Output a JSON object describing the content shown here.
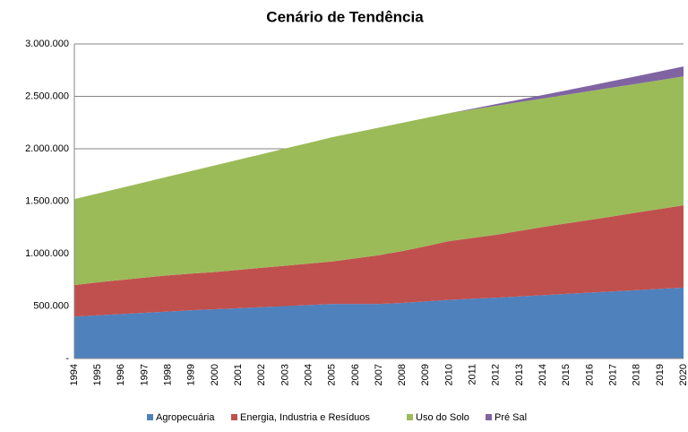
{
  "chart_data": {
    "type": "stacked_area",
    "title": "Cenário de Tendência",
    "categories": [
      "1994",
      "1995",
      "1996",
      "1997",
      "1998",
      "1999",
      "2000",
      "2001",
      "2002",
      "2003",
      "2004",
      "2005",
      "2006",
      "2007",
      "2008",
      "2009",
      "2010",
      "2011",
      "2012",
      "2013",
      "2014",
      "2015",
      "2016",
      "2017",
      "2018",
      "2019",
      "2020"
    ],
    "series": [
      {
        "name": "Agropecuária",
        "color": "#4f81bd",
        "values": [
          400000,
          412000,
          424000,
          436000,
          448000,
          460000,
          470000,
          480000,
          490000,
          500000,
          510000,
          520000,
          520000,
          520000,
          530000,
          545000,
          560000,
          570000,
          580000,
          592000,
          604000,
          616000,
          628000,
          640000,
          652000,
          664000,
          676000
        ]
      },
      {
        "name": "Energia, Industria e Resíduos",
        "color": "#c0504d",
        "values": [
          300000,
          315000,
          325000,
          335000,
          345000,
          350000,
          355000,
          365000,
          375000,
          385000,
          395000,
          405000,
          435000,
          465000,
          495000,
          525000,
          560000,
          580000,
          600000,
          625000,
          650000,
          672000,
          694000,
          716000,
          740000,
          762000,
          784000
        ]
      },
      {
        "name": "Uso do Solo",
        "color": "#9bbb59",
        "values": [
          820000,
          847000,
          878000,
          910000,
          942000,
          978000,
          1017000,
          1050000,
          1084000,
          1118000,
          1151000,
          1185000,
          1201000,
          1217000,
          1223000,
          1224000,
          1220000,
          1225000,
          1230000,
          1228000,
          1226000,
          1227000,
          1228000,
          1229000,
          1228000,
          1229000,
          1230000
        ]
      },
      {
        "name": "Pré Sal",
        "color": "#8064a2",
        "values": [
          0,
          0,
          0,
          0,
          0,
          0,
          0,
          0,
          0,
          0,
          0,
          0,
          0,
          0,
          0,
          0,
          0,
          8000,
          16000,
          24000,
          33000,
          42000,
          52000,
          62000,
          72000,
          83000,
          95000
        ]
      }
    ],
    "ylim": [
      0,
      3000000
    ],
    "yticks": [
      {
        "value": 0,
        "label": "-"
      },
      {
        "value": 500000,
        "label": "500.000"
      },
      {
        "value": 1000000,
        "label": "1.000.000"
      },
      {
        "value": 1500000,
        "label": "1.500.000"
      },
      {
        "value": 2000000,
        "label": "2.000.000"
      },
      {
        "value": 2500000,
        "label": "2.500.000"
      },
      {
        "value": 3000000,
        "label": "3.000.000"
      }
    ],
    "grid": true,
    "legend": "bottom"
  }
}
